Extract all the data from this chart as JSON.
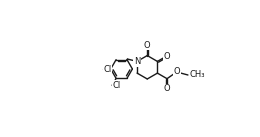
{
  "bg_color": "#ffffff",
  "line_color": "#1a1a1a",
  "line_width": 1.0,
  "font_size": 6.0,
  "figsize": [
    2.6,
    1.37
  ],
  "dpi": 100,
  "xlim": [
    -0.05,
    1.05
  ],
  "ylim": [
    -0.05,
    1.05
  ]
}
